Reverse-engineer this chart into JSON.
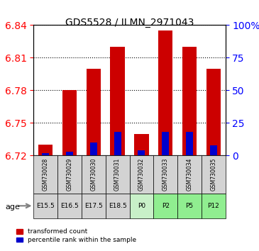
{
  "title": "GDS5528 / ILMN_2971043",
  "samples": [
    "GSM730028",
    "GSM730029",
    "GSM730030",
    "GSM730031",
    "GSM730032",
    "GSM730033",
    "GSM730034",
    "GSM730035"
  ],
  "age_labels": [
    "E15.5",
    "E16.5",
    "E17.5",
    "E18.5",
    "P0",
    "P2",
    "P5",
    "P12"
  ],
  "age_bg_colors": [
    "#d3d3d3",
    "#d3d3d3",
    "#d3d3d3",
    "#d3d3d3",
    "#c8f0c8",
    "#90ee90",
    "#90ee90",
    "#90ee90"
  ],
  "sample_bg_colors": [
    "#d3d3d3",
    "#d3d3d3",
    "#d3d3d3",
    "#d3d3d3",
    "#d3d3d3",
    "#d3d3d3",
    "#d3d3d3",
    "#d3d3d3"
  ],
  "transformed_counts": [
    6.73,
    6.78,
    6.8,
    6.82,
    6.74,
    6.835,
    6.82,
    6.8
  ],
  "percentile_ranks": [
    2.0,
    3.0,
    10.0,
    18.0,
    4.0,
    18.0,
    18.0,
    8.0
  ],
  "ylim_left": [
    6.72,
    6.84
  ],
  "ylim_right": [
    0,
    100
  ],
  "yticks_left": [
    6.72,
    6.75,
    6.78,
    6.81,
    6.84
  ],
  "yticks_right": [
    0,
    25,
    50,
    75,
    100
  ],
  "bar_width": 0.6,
  "red_color": "#cc0000",
  "blue_color": "#0000cc",
  "baseline": 6.72,
  "percentile_scale_factor": 0.0012
}
